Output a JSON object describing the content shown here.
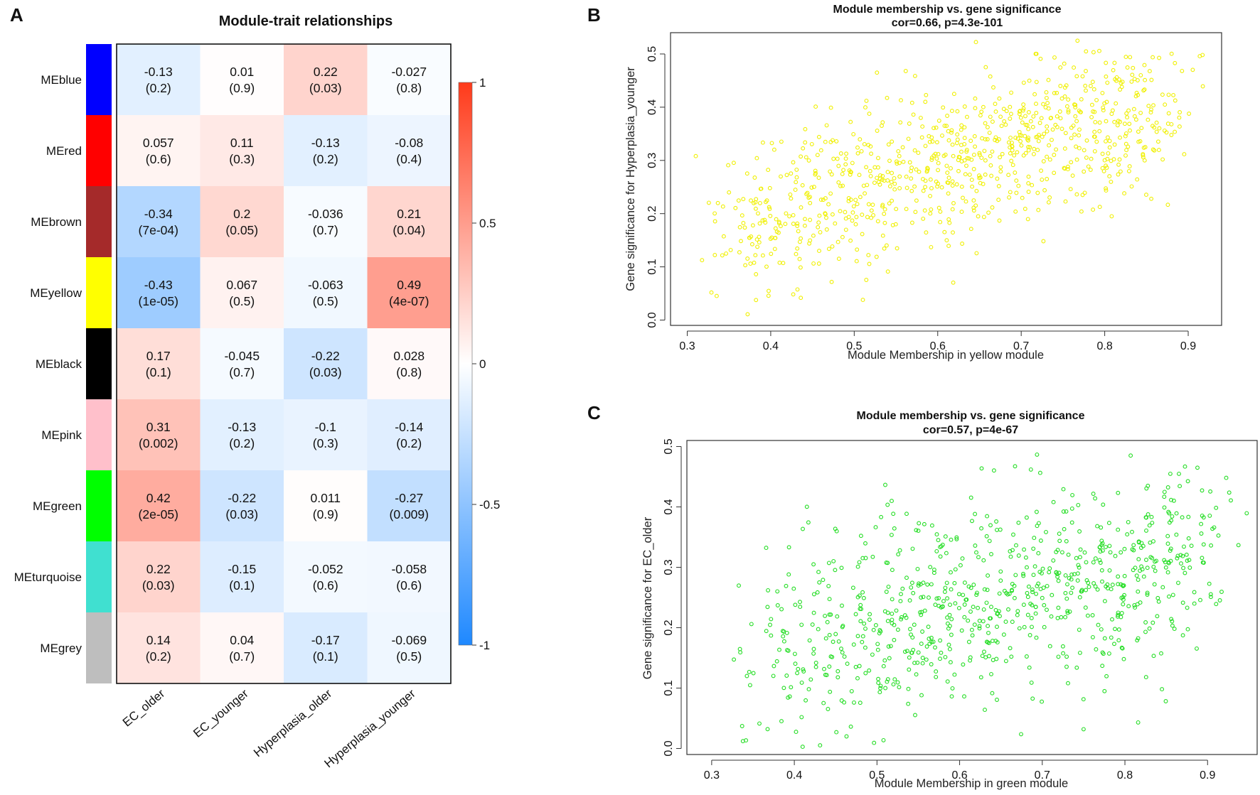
{
  "panels": {
    "A": "A",
    "B": "B",
    "C": "C"
  },
  "chart_data": [
    {
      "type": "heatmap",
      "title": "Module-trait relationships",
      "rows": [
        "MEblue",
        "MEred",
        "MEbrown",
        "MEyellow",
        "MEblack",
        "MEpink",
        "MEgreen",
        "MEturquoise",
        "MEgrey"
      ],
      "row_colors": [
        "#0000ff",
        "#ff0000",
        "#a52a2a",
        "#ffff00",
        "#000000",
        "#ffc0cb",
        "#00ff00",
        "#40e0d0",
        "#bebebe"
      ],
      "columns": [
        "EC_older",
        "EC_younger",
        "Hyperplasia_older",
        "Hyperplasia_younger"
      ],
      "values": [
        [
          -0.13,
          0.01,
          0.22,
          -0.027
        ],
        [
          0.057,
          0.11,
          -0.13,
          -0.08
        ],
        [
          -0.34,
          0.2,
          -0.036,
          0.21
        ],
        [
          -0.43,
          0.067,
          -0.063,
          0.49
        ],
        [
          0.17,
          -0.045,
          -0.22,
          0.028
        ],
        [
          0.31,
          -0.13,
          -0.1,
          -0.14
        ],
        [
          0.42,
          -0.22,
          0.011,
          -0.27
        ],
        [
          0.22,
          -0.15,
          -0.052,
          -0.058
        ],
        [
          0.14,
          0.04,
          -0.17,
          -0.069
        ]
      ],
      "value_labels": [
        [
          "-0.13",
          "0.01",
          "0.22",
          "-0.027"
        ],
        [
          "0.057",
          "0.11",
          "-0.13",
          "-0.08"
        ],
        [
          "-0.34",
          "0.2",
          "-0.036",
          "0.21"
        ],
        [
          "-0.43",
          "0.067",
          "-0.063",
          "0.49"
        ],
        [
          "0.17",
          "-0.045",
          "-0.22",
          "0.028"
        ],
        [
          "0.31",
          "-0.13",
          "-0.1",
          "-0.14"
        ],
        [
          "0.42",
          "-0.22",
          "0.011",
          "-0.27"
        ],
        [
          "0.22",
          "-0.15",
          "-0.052",
          "-0.058"
        ],
        [
          "0.14",
          "0.04",
          "-0.17",
          "-0.069"
        ]
      ],
      "pvalues": [
        [
          "(0.2)",
          "(0.9)",
          "(0.03)",
          "(0.8)"
        ],
        [
          "(0.6)",
          "(0.3)",
          "(0.2)",
          "(0.4)"
        ],
        [
          "(7e-04)",
          "(0.05)",
          "(0.7)",
          "(0.04)"
        ],
        [
          "(1e-05)",
          "(0.5)",
          "(0.5)",
          "(4e-07)"
        ],
        [
          "(0.1)",
          "(0.7)",
          "(0.03)",
          "(0.8)"
        ],
        [
          "(0.002)",
          "(0.2)",
          "(0.3)",
          "(0.2)"
        ],
        [
          "(2e-05)",
          "(0.03)",
          "(0.9)",
          "(0.009)"
        ],
        [
          "(0.03)",
          "(0.1)",
          "(0.6)",
          "(0.6)"
        ],
        [
          "(0.2)",
          "(0.7)",
          "(0.1)",
          "(0.5)"
        ]
      ],
      "colorbar": {
        "range": [
          -1,
          1
        ],
        "ticks": [
          "1",
          "0.5",
          "0",
          "-0.5",
          "-1"
        ],
        "low_color": "#1e88ff",
        "mid_color": "#ffffff",
        "high_color": "#ff3a1a"
      }
    },
    {
      "type": "scatter",
      "title": "Module membership vs. gene significance",
      "subtitle": "cor=0.66, p=4.3e-101",
      "xlabel": "Module Membership in yellow module",
      "ylabel": "Gene significance for Hyperplasia_younger",
      "xlim": [
        0.28,
        0.94
      ],
      "ylim": [
        -0.01,
        0.54
      ],
      "xticks": [
        "0.3",
        "0.4",
        "0.5",
        "0.6",
        "0.7",
        "0.8",
        "0.9"
      ],
      "yticks": [
        "0.0",
        "0.1",
        "0.2",
        "0.3",
        "0.4",
        "0.5"
      ],
      "point_color": "#f0f000",
      "n_points": 850,
      "x_range": [
        0.3,
        0.93
      ],
      "y_range": [
        0.0,
        0.53
      ],
      "cor": 0.66
    },
    {
      "type": "scatter",
      "title": "Module membership vs. gene significance",
      "subtitle": "cor=0.57, p=4e-67",
      "xlabel": "Module Membership in green module",
      "ylabel": "Gene significance for EC_older",
      "xlim": [
        0.27,
        0.96
      ],
      "ylim": [
        -0.01,
        0.51
      ],
      "xticks": [
        "0.3",
        "0.4",
        "0.5",
        "0.6",
        "0.7",
        "0.8",
        "0.9"
      ],
      "yticks": [
        "0.0",
        "0.1",
        "0.2",
        "0.3",
        "0.4",
        "0.5"
      ],
      "point_color": "#22dd22",
      "n_points": 800,
      "x_range": [
        0.3,
        0.95
      ],
      "y_range": [
        0.0,
        0.49
      ],
      "cor": 0.57
    }
  ]
}
